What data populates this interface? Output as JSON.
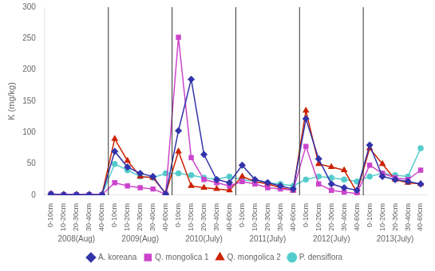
{
  "chart_data": {
    "type": "line",
    "ylabel": "K (mg/kg)",
    "categories": [
      "0-10cm",
      "10-20cm",
      "20-30cm",
      "30-40cm",
      "40-60cm",
      "0-10cm",
      "10-20cm",
      "20-30cm",
      "30-40cm",
      "40-60cm",
      "0-10cm",
      "10-20cm",
      "20-30cm",
      "30-40cm",
      "40-60cm",
      "0-10cm",
      "10-20cm",
      "20-30cm",
      "30-40cm",
      "40-60cm",
      "0-10cm",
      "10-20cm",
      "20-30cm",
      "30-40cm",
      "40-60cm",
      "0-10cm",
      "10-20cm",
      "20-30cm",
      "30-40cm",
      "40-60cm"
    ],
    "group_labels": [
      "2008(Aug)",
      "2009(Aug)",
      "2010(July)",
      "2011(July)",
      "2012(July)",
      "2013(July)"
    ],
    "series": [
      {
        "name": "A. koreana",
        "color": "#3333AA",
        "marker": "diamond",
        "values": [
          2,
          1,
          1,
          1,
          1,
          70,
          45,
          35,
          30,
          2,
          103,
          185,
          65,
          25,
          20,
          48,
          25,
          20,
          15,
          10,
          122,
          58,
          18,
          12,
          8,
          80,
          30,
          25,
          22,
          18
        ]
      },
      {
        "name": "Q. mongolica 1",
        "color": "#CC44CC",
        "marker": "square",
        "values": [
          2,
          1,
          1,
          1,
          1,
          20,
          15,
          12,
          10,
          2,
          252,
          60,
          25,
          20,
          15,
          22,
          18,
          12,
          10,
          8,
          78,
          18,
          8,
          5,
          3,
          48,
          35,
          28,
          25,
          40
        ]
      },
      {
        "name": "Q. mongolica 2",
        "color": "#CC2200",
        "marker": "triangle",
        "values": [
          2,
          1,
          1,
          1,
          1,
          90,
          55,
          30,
          28,
          3,
          70,
          15,
          12,
          10,
          8,
          30,
          22,
          18,
          12,
          8,
          135,
          50,
          45,
          40,
          5,
          75,
          50,
          25,
          20,
          18
        ]
      },
      {
        "name": "P. densiflora",
        "color": "#55CCCC",
        "marker": "circle",
        "values": [
          2,
          1,
          1,
          1,
          1,
          50,
          40,
          30,
          28,
          35,
          35,
          32,
          28,
          25,
          30,
          25,
          22,
          20,
          18,
          15,
          25,
          30,
          28,
          25,
          22,
          30,
          35,
          32,
          30,
          75
        ]
      }
    ],
    "ylim": [
      0,
      300
    ],
    "yticks": [
      0,
      50,
      100,
      150,
      200,
      250,
      300
    ],
    "grid": false,
    "legend": "bottom"
  }
}
